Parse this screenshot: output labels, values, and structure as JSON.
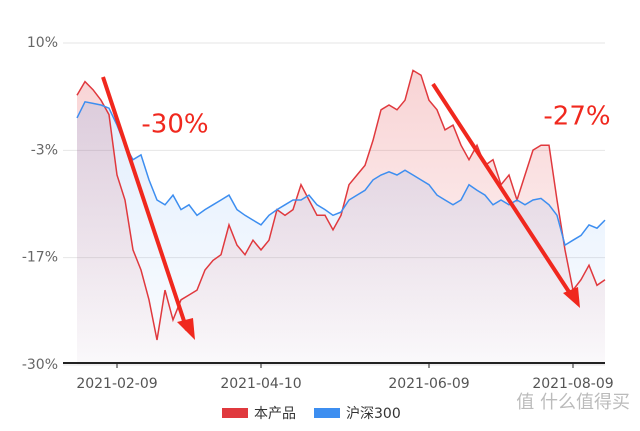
{
  "chart_data": {
    "type": "line",
    "categories": [
      null,
      null,
      null,
      null,
      null,
      "2021-02-09",
      null,
      null,
      null,
      null,
      null,
      null,
      null,
      null,
      null,
      null,
      null,
      null,
      null,
      null,
      null,
      null,
      null,
      "2021-04-10",
      null,
      null,
      null,
      null,
      null,
      null,
      null,
      null,
      null,
      null,
      null,
      null,
      null,
      null,
      null,
      null,
      null,
      null,
      null,
      null,
      "2021-06-09",
      null,
      null,
      null,
      null,
      null,
      null,
      null,
      null,
      null,
      null,
      null,
      null,
      null,
      null,
      null,
      null,
      null,
      "2021-08-09",
      null,
      null,
      null,
      null
    ],
    "series": [
      {
        "name": "本产品",
        "color": "#e0393e",
        "values": [
          3.5,
          5.2,
          4.2,
          2.9,
          1.1,
          -6.4,
          -9.5,
          -15.7,
          -18.2,
          -21.9,
          -26.9,
          -20.7,
          -24.4,
          -21.9,
          -21.3,
          -20.7,
          -18.2,
          -17.0,
          -16.3,
          -12.6,
          -15.1,
          -16.3,
          -14.5,
          -15.7,
          -14.5,
          -10.7,
          -11.4,
          -10.7,
          -7.6,
          -9.5,
          -11.4,
          -11.4,
          -13.2,
          -11.4,
          -7.6,
          -6.4,
          -5.2,
          -2.1,
          1.7,
          2.3,
          1.7,
          2.9,
          6.6,
          6.0,
          2.9,
          1.7,
          -0.8,
          -0.2,
          -2.7,
          -4.5,
          -2.7,
          -5.2,
          -4.5,
          -7.6,
          -6.4,
          -9.5,
          -6.4,
          -3.3,
          -2.7,
          -2.7,
          -9.5,
          -15.7,
          -20.7,
          -19.4,
          -17.6,
          -20.1,
          -19.4
        ]
      },
      {
        "name": "沪深300",
        "color": "#3d8ef0",
        "values": [
          0.7,
          2.7,
          2.5,
          2.3,
          1.9,
          -0.2,
          -2.7,
          -4.5,
          -3.9,
          -7.0,
          -9.5,
          -10.1,
          -8.9,
          -10.7,
          -10.1,
          -11.4,
          -10.7,
          -10.1,
          -9.5,
          -8.9,
          -10.7,
          -11.4,
          -12.0,
          -12.6,
          -11.4,
          -10.7,
          -10.1,
          -9.5,
          -9.5,
          -8.9,
          -10.1,
          -10.7,
          -11.4,
          -11.0,
          -9.5,
          -8.9,
          -8.3,
          -7.0,
          -6.4,
          -6.0,
          -6.4,
          -5.8,
          -6.4,
          -7.0,
          -7.6,
          -8.9,
          -9.5,
          -10.1,
          -9.5,
          -7.6,
          -8.3,
          -8.9,
          -10.1,
          -9.5,
          -10.1,
          -9.5,
          -10.1,
          -9.5,
          -9.3,
          -10.1,
          -11.4,
          -15.1,
          -14.5,
          -13.9,
          -12.6,
          -13.0,
          -12.0
        ]
      }
    ],
    "ylim": [
      -30,
      10
    ],
    "yticks": [
      {
        "value": 10,
        "label": "10%"
      },
      {
        "value": -3.333,
        "label": "-3%"
      },
      {
        "value": -16.667,
        "label": "-17%"
      },
      {
        "value": -30,
        "label": "-30%"
      }
    ],
    "grid": true,
    "annotations": [
      "-30%",
      "-27%"
    ],
    "watermark": "值 什么值得买"
  }
}
